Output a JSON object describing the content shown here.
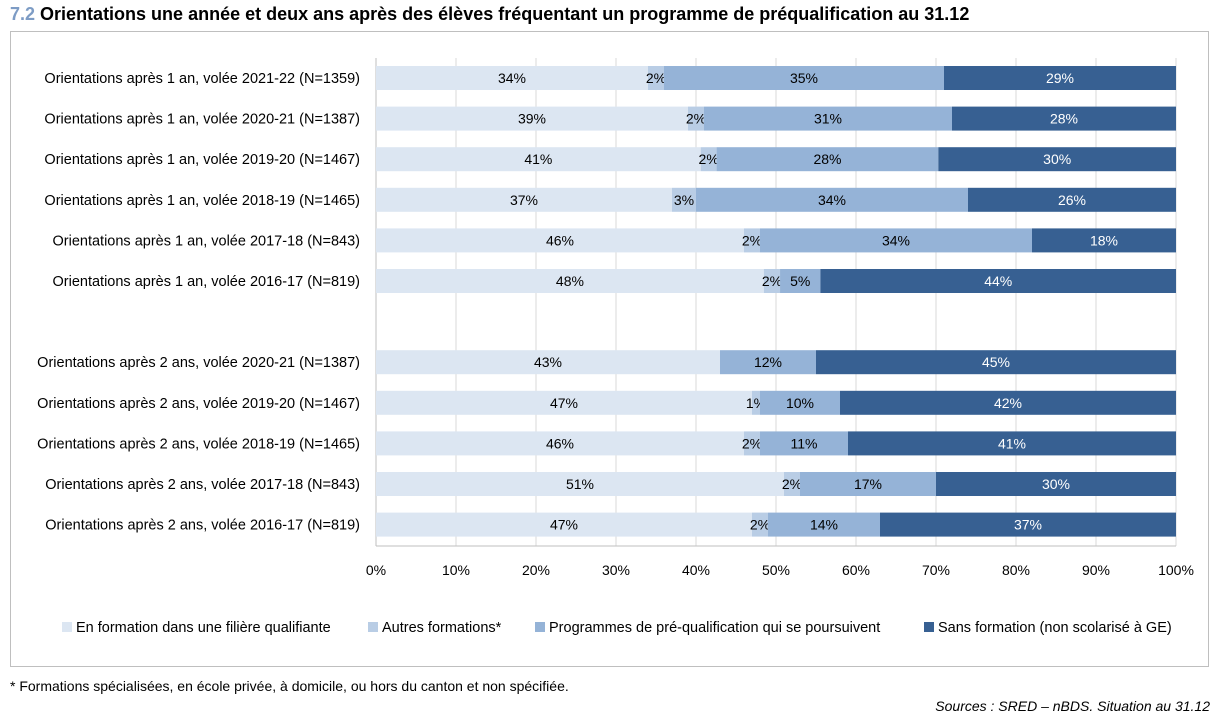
{
  "title": {
    "number": "7.2",
    "text": "Orientations une année et deux ans après des élèves fréquentant un programme de préqualification au 31.12"
  },
  "footnote": "* Formations spécialisées, en école privée, à domicile, ou hors du canton et non spécifiée.",
  "source": "Sources : SRED – nBDS. Situation au 31.12",
  "chart_data": {
    "type": "bar",
    "orientation": "horizontal",
    "stacked": "percent",
    "categories": [
      "Orientations après 1 an, volée 2021-22 (N=1359)",
      "Orientations après 1 an, volée 2020-21 (N=1387)",
      "Orientations après 1 an, volée 2019-20 (N=1467)",
      "Orientations après 1 an, volée 2018-19 (N=1465)",
      "Orientations après 1 an, volée 2017-18 (N=843)",
      "Orientations après 1 an, volée 2016-17 (N=819)",
      "",
      "Orientations après 2 ans, volée 2020-21 (N=1387)",
      "Orientations après 2 ans, volée 2019-20 (N=1467)",
      "Orientations après 2 ans, volée 2018-19 (N=1465)",
      "Orientations après 2 ans, volée 2017-18 (N=843)",
      "Orientations après 2 ans, volée 2016-17 (N=819)"
    ],
    "series": [
      {
        "name": "En formation dans une filière qualifiante",
        "color": "#dce6f2",
        "label_color": "#000000",
        "values": [
          34,
          39,
          41,
          37,
          46,
          48,
          null,
          43,
          47,
          46,
          51,
          47
        ]
      },
      {
        "name": "Autres formations*",
        "color": "#b9cde5",
        "label_color": "#000000",
        "values": [
          2,
          2,
          2,
          3,
          2,
          2,
          null,
          0,
          1,
          2,
          2,
          2
        ]
      },
      {
        "name": "Programmes de pré-qualification qui se poursuivent",
        "color": "#95b3d7",
        "label_color": "#000000",
        "values": [
          35,
          31,
          28,
          34,
          34,
          5,
          null,
          12,
          10,
          11,
          17,
          14
        ]
      },
      {
        "name": "Sans formation (non scolarisé à GE)",
        "color": "#376092",
        "label_color": "#ffffff",
        "values": [
          29,
          28,
          30,
          26,
          18,
          44,
          null,
          45,
          42,
          41,
          30,
          37
        ]
      }
    ],
    "xlim": [
      0,
      100
    ],
    "xticks": [
      "0%",
      "10%",
      "20%",
      "30%",
      "40%",
      "50%",
      "60%",
      "70%",
      "80%",
      "90%",
      "100%"
    ],
    "grid": true,
    "legend": "bottom"
  }
}
